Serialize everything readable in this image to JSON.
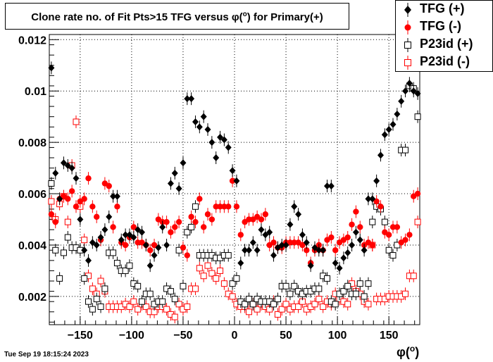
{
  "chart_data": {
    "type": "scatter",
    "title": "Clone rate no. of Fit Pts>15 TFG versus φ(°) for Primary(+)",
    "title_parts": {
      "pre": "Clone rate no. of Fit Pts>15 TFG versus ",
      "sym": "φ(",
      "sup": "o",
      "post": ") for Primary(+)"
    },
    "xlabel": "φ",
    "xlabel_sup": "o",
    "ylabel": "",
    "xlim": [
      -180,
      180
    ],
    "ylim": [
      0.0009,
      0.0122
    ],
    "grid": true,
    "legend_position": "top-right",
    "x_ticks": [
      -150,
      -100,
      -50,
      0,
      50,
      100,
      150
    ],
    "x_tick_labels": [
      "−150",
      "−100",
      "−50",
      "0",
      "50",
      "100",
      "150"
    ],
    "y_ticks": [
      0.002,
      0.004,
      0.006,
      0.008,
      0.01,
      0.012
    ],
    "y_tick_labels": [
      "0.002",
      "0.004",
      "0.006",
      "0.008",
      "0.01",
      "0.012"
    ],
    "series": [
      {
        "name": "TFG (+)",
        "marker": "filled-diamond",
        "color": "#000000",
        "x": [
          -178,
          -174,
          -170,
          -166,
          -162,
          -158,
          -154,
          -150,
          -146,
          -142,
          -138,
          -134,
          -130,
          -126,
          -122,
          -118,
          -114,
          -110,
          -106,
          -102,
          -98,
          -94,
          -90,
          -86,
          -82,
          -78,
          -74,
          -70,
          -66,
          -62,
          -58,
          -54,
          -50,
          -46,
          -42,
          -38,
          -34,
          -30,
          -26,
          -22,
          -18,
          -14,
          -10,
          -6,
          -2,
          2,
          6,
          10,
          14,
          18,
          22,
          26,
          30,
          34,
          38,
          42,
          46,
          50,
          54,
          58,
          62,
          66,
          70,
          74,
          78,
          82,
          86,
          90,
          94,
          98,
          102,
          106,
          110,
          114,
          118,
          122,
          126,
          130,
          134,
          138,
          142,
          146,
          150,
          154,
          158,
          162,
          166,
          170,
          174,
          178
        ],
        "y": [
          0.0109,
          0.0068,
          0.0058,
          0.0072,
          0.0071,
          0.007,
          0.0066,
          0.005,
          0.0038,
          0.0034,
          0.0041,
          0.004,
          0.0043,
          0.0046,
          0.0051,
          0.0059,
          0.0059,
          0.0042,
          0.0044,
          0.0044,
          0.0043,
          0.0046,
          0.0045,
          0.004,
          0.0032,
          0.0036,
          0.0039,
          0.0047,
          0.004,
          0.0064,
          0.0068,
          0.0062,
          0.0072,
          0.0097,
          0.0097,
          0.0088,
          0.0086,
          0.009,
          0.0085,
          0.008,
          0.0074,
          0.0082,
          0.0081,
          0.0078,
          0.0069,
          0.0065,
          0.0033,
          0.0038,
          0.0038,
          0.0041,
          0.0038,
          0.0046,
          0.0044,
          0.0045,
          0.0036,
          0.0039,
          0.004,
          0.004,
          0.0048,
          0.0055,
          0.0052,
          0.0044,
          0.0041,
          0.0032,
          0.0039,
          0.0038,
          0.0038,
          0.0063,
          0.0063,
          0.0033,
          0.0031,
          0.0035,
          0.0037,
          0.004,
          0.0045,
          0.0042,
          0.0038,
          0.0058,
          0.0058,
          0.0065,
          0.0075,
          0.0083,
          0.0085,
          0.0087,
          0.0091,
          0.0096,
          0.01,
          0.0103,
          0.01,
          0.0099
        ]
      },
      {
        "name": "TFG (-)",
        "marker": "filled-circle",
        "color": "#ff0000",
        "x": [
          -178,
          -174,
          -170,
          -166,
          -162,
          -158,
          -154,
          -150,
          -146,
          -142,
          -138,
          -134,
          -130,
          -126,
          -122,
          -118,
          -114,
          -110,
          -106,
          -102,
          -98,
          -94,
          -90,
          -86,
          -82,
          -78,
          -74,
          -70,
          -66,
          -62,
          -58,
          -54,
          -50,
          -46,
          -42,
          -38,
          -34,
          -30,
          -26,
          -22,
          -18,
          -14,
          -10,
          -6,
          -2,
          2,
          6,
          10,
          14,
          18,
          22,
          26,
          30,
          34,
          38,
          42,
          46,
          50,
          54,
          58,
          62,
          66,
          70,
          74,
          78,
          82,
          86,
          90,
          94,
          98,
          102,
          106,
          110,
          114,
          118,
          122,
          126,
          130,
          134,
          138,
          142,
          146,
          150,
          154,
          158,
          162,
          166,
          170,
          174,
          178
        ],
        "y": [
          0.0052,
          0.0049,
          0.0058,
          0.0059,
          0.0058,
          0.0061,
          0.0055,
          0.0057,
          0.0058,
          0.0066,
          0.0055,
          0.0051,
          0.0042,
          0.0064,
          0.0063,
          0.0047,
          0.0055,
          0.0041,
          0.004,
          0.0043,
          0.0047,
          0.0041,
          0.0041,
          0.004,
          0.0038,
          0.004,
          0.005,
          0.0049,
          0.0049,
          0.0045,
          0.0047,
          0.0049,
          0.0039,
          0.0036,
          0.0051,
          0.0049,
          0.0058,
          0.0047,
          0.0052,
          0.005,
          0.0055,
          0.0055,
          0.0055,
          0.0055,
          0.0065,
          0.0055,
          0.0044,
          0.0049,
          0.005,
          0.005,
          0.0051,
          0.005,
          0.0052,
          0.004,
          0.0041,
          0.0039,
          0.0039,
          0.0041,
          0.0041,
          0.0041,
          0.0041,
          0.004,
          0.0038,
          0.0033,
          0.0038,
          0.004,
          0.0038,
          0.0042,
          0.0043,
          0.0038,
          0.0041,
          0.0042,
          0.0043,
          0.0048,
          0.0053,
          0.0047,
          0.004,
          0.0041,
          0.004,
          0.0057,
          0.0055,
          0.0045,
          0.0044,
          0.0047,
          0.0047,
          0.0041,
          0.0042,
          0.0044,
          0.0059,
          0.006
        ]
      },
      {
        "name": "P23id (+)",
        "marker": "open-square",
        "color": "#000000",
        "x": [
          -178,
          -174,
          -170,
          -166,
          -162,
          -158,
          -154,
          -150,
          -146,
          -142,
          -138,
          -134,
          -130,
          -126,
          -122,
          -118,
          -114,
          -110,
          -106,
          -102,
          -98,
          -94,
          -90,
          -86,
          -82,
          -78,
          -74,
          -70,
          -66,
          -62,
          -58,
          -54,
          -50,
          -46,
          -42,
          -38,
          -34,
          -30,
          -26,
          -22,
          -18,
          -14,
          -10,
          -6,
          -2,
          2,
          6,
          10,
          14,
          18,
          22,
          26,
          30,
          34,
          38,
          42,
          46,
          50,
          54,
          58,
          62,
          66,
          70,
          74,
          78,
          82,
          86,
          90,
          94,
          98,
          102,
          106,
          110,
          114,
          118,
          122,
          126,
          130,
          134,
          138,
          142,
          146,
          150,
          154,
          158,
          162,
          166,
          170,
          174,
          178
        ],
        "y": [
          0.0064,
          0.0038,
          0.0027,
          0.0037,
          0.0043,
          0.0039,
          0.0039,
          0.0038,
          0.0027,
          0.0018,
          0.0015,
          0.0019,
          0.0016,
          0.0023,
          0.0037,
          0.0037,
          0.0033,
          0.003,
          0.003,
          0.0032,
          0.0025,
          0.0024,
          0.0018,
          0.0021,
          0.0021,
          0.0017,
          0.0018,
          0.0018,
          0.0023,
          0.0022,
          0.0019,
          0.0038,
          0.0024,
          0.0045,
          0.0047,
          0.0055,
          0.0036,
          0.0036,
          0.0036,
          0.0036,
          0.0035,
          0.0035,
          0.0036,
          0.0036,
          0.0025,
          0.0027,
          0.0018,
          0.0017,
          0.0019,
          0.0017,
          0.0019,
          0.0018,
          0.0018,
          0.0018,
          0.0017,
          0.0019,
          0.0024,
          0.0024,
          0.0021,
          0.0024,
          0.0022,
          0.0021,
          0.0022,
          0.0022,
          0.0023,
          0.0023,
          0.0028,
          0.0027,
          0.0018,
          0.0017,
          0.0021,
          0.0022,
          0.0024,
          0.0021,
          0.0021,
          0.0025,
          0.002,
          0.0025,
          0.0049,
          0.0055,
          0.0054,
          0.0049,
          0.0038,
          0.0036,
          0.004,
          0.0077,
          0.0077,
          0.0102,
          0.0101,
          0.009
        ]
      },
      {
        "name": "P23id (-)",
        "marker": "open-square",
        "color": "#ff0000",
        "x": [
          -178,
          -174,
          -170,
          -166,
          -162,
          -158,
          -154,
          -150,
          -146,
          -142,
          -138,
          -134,
          -130,
          -126,
          -122,
          -118,
          -114,
          -110,
          -106,
          -102,
          -98,
          -94,
          -90,
          -86,
          -82,
          -78,
          -74,
          -70,
          -66,
          -62,
          -58,
          -54,
          -50,
          -46,
          -42,
          -38,
          -34,
          -30,
          -26,
          -22,
          -18,
          -14,
          -10,
          -6,
          -2,
          2,
          6,
          10,
          14,
          18,
          22,
          26,
          30,
          34,
          38,
          42,
          46,
          50,
          54,
          58,
          62,
          66,
          70,
          74,
          78,
          82,
          86,
          90,
          94,
          98,
          102,
          106,
          110,
          114,
          118,
          122,
          126,
          130,
          134,
          138,
          142,
          146,
          150,
          154,
          158,
          162,
          166,
          170,
          174,
          178
        ],
        "y": [
          0.0057,
          0.005,
          0.0056,
          0.0059,
          0.0049,
          0.0071,
          0.0088,
          0.0055,
          0.0042,
          0.0028,
          0.0023,
          0.0021,
          0.0026,
          0.0022,
          0.0016,
          0.0016,
          0.0016,
          0.0016,
          0.0017,
          0.0016,
          0.0018,
          0.0015,
          0.0017,
          0.0016,
          0.0014,
          0.0014,
          0.0016,
          0.0016,
          0.0015,
          0.0013,
          0.0012,
          0.0017,
          0.0015,
          0.0016,
          0.0023,
          0.0023,
          0.0031,
          0.0028,
          0.0032,
          0.0029,
          0.0027,
          0.003,
          0.0025,
          0.0021,
          0.002,
          0.0017,
          0.0016,
          0.0016,
          0.0014,
          0.0017,
          0.0015,
          0.0017,
          0.0016,
          0.0015,
          0.0018,
          0.0013,
          0.0015,
          0.0017,
          0.0015,
          0.0016,
          0.0016,
          0.0018,
          0.0015,
          0.0016,
          0.0017,
          0.0019,
          0.0016,
          0.0018,
          0.0017,
          0.0021,
          0.0019,
          0.0018,
          0.0017,
          0.0025,
          0.0022,
          0.0021,
          0.0018,
          0.0017,
          0.004,
          0.0019,
          0.0019,
          0.0019,
          0.002,
          0.002,
          0.002,
          0.002,
          0.0021,
          0.0028,
          0.0028,
          0.0049
        ]
      }
    ]
  },
  "footer": {
    "timestamp": "Tue Sep 19 18:15:24 2023"
  }
}
